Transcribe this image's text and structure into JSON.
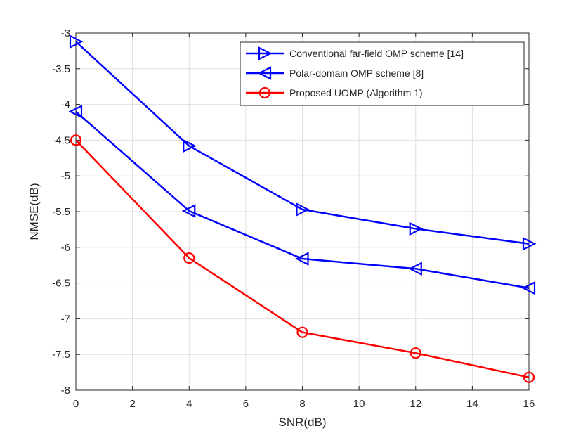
{
  "chart_data": {
    "type": "line",
    "title": "",
    "xlabel": "SNR(dB)",
    "ylabel": "NMSE(dB)",
    "x": [
      0,
      4,
      8,
      12,
      16
    ],
    "xlim": [
      0,
      16
    ],
    "ylim": [
      -8,
      -3
    ],
    "xticks": [
      0,
      2,
      4,
      6,
      8,
      10,
      12,
      14,
      16
    ],
    "xtick_labels": [
      "0",
      "2",
      "4",
      "6",
      "8",
      "10",
      "12",
      "14",
      "16"
    ],
    "yticks": [
      -3,
      -3.5,
      -4,
      -4.5,
      -5,
      -5.5,
      -6,
      -6.5,
      -7,
      -7.5,
      -8
    ],
    "ytick_labels": [
      "-3",
      "-3.5",
      "-4",
      "-4.5",
      "-5",
      "-5.5",
      "-6",
      "-6.5",
      "-7",
      "-7.5",
      "-8"
    ],
    "grid": true,
    "legend_position": "top-right",
    "series": [
      {
        "name": "Conventional far-field OMP scheme [14]",
        "color": "#0000FF",
        "marker": "triangle-right",
        "values": [
          -3.12,
          -4.58,
          -5.47,
          -5.74,
          -5.95
        ]
      },
      {
        "name": "Polar-domain OMP scheme [8]",
        "color": "#0000FF",
        "marker": "triangle-left",
        "values": [
          -4.1,
          -5.49,
          -6.16,
          -6.3,
          -6.57
        ]
      },
      {
        "name": "Proposed UOMP (Algorithm 1)",
        "color": "#FF0000",
        "marker": "circle",
        "values": [
          -4.5,
          -6.15,
          -7.19,
          -7.48,
          -7.82
        ]
      }
    ]
  }
}
